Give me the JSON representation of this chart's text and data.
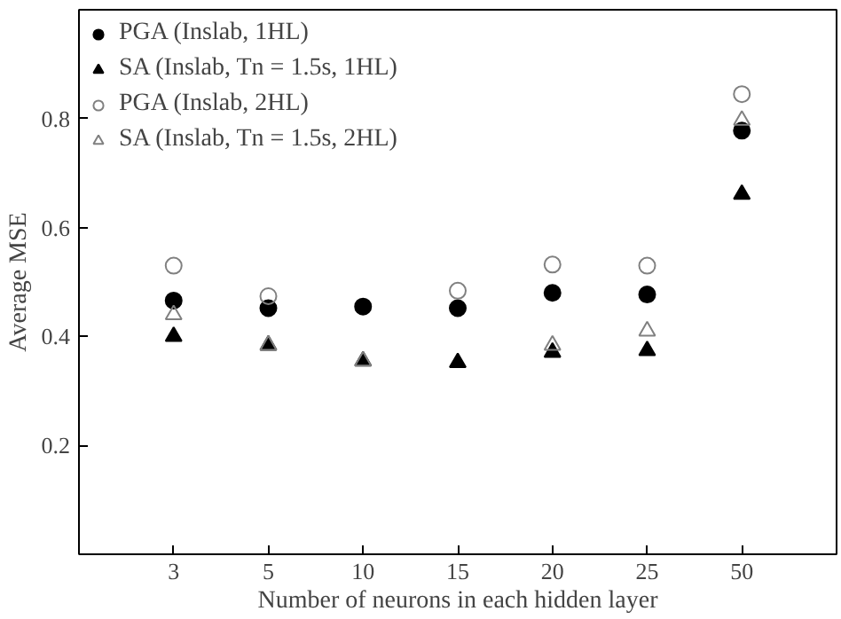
{
  "chart_data": {
    "type": "scatter",
    "xlabel": "Number of neurons in each hidden layer",
    "ylabel": "Average MSE",
    "categories": [
      "3",
      "5",
      "10",
      "15",
      "20",
      "25",
      "50"
    ],
    "ylim": [
      0,
      1
    ],
    "yticks": [
      0.2,
      0.4,
      0.6,
      0.8
    ],
    "grid": false,
    "legend": "top left",
    "series": [
      {
        "name": "PGA (Inslab, 1HL)",
        "color": "#000000",
        "marker": "circle",
        "values": [
          0.466,
          0.452,
          0.455,
          0.452,
          0.48,
          0.477,
          0.778
        ]
      },
      {
        "name": "SA (Inslab, Tn = 1.5s, 1HL)",
        "color": "#000000",
        "marker": "triangle",
        "values": [
          0.4,
          0.384,
          0.355,
          0.352,
          0.371,
          0.374,
          0.661
        ]
      },
      {
        "name": "PGA (Inslab, 2HL)",
        "color": "#808080",
        "marker": "circle",
        "values": [
          0.53,
          0.474,
          null,
          0.484,
          0.532,
          0.53,
          0.845
        ]
      },
      {
        "name": "SA (Inslab, Tn = 1.5s, 2HL)",
        "color": "#808080",
        "marker": "triangle",
        "values": [
          0.44,
          0.384,
          0.355,
          null,
          0.384,
          0.41,
          0.797
        ]
      }
    ]
  }
}
